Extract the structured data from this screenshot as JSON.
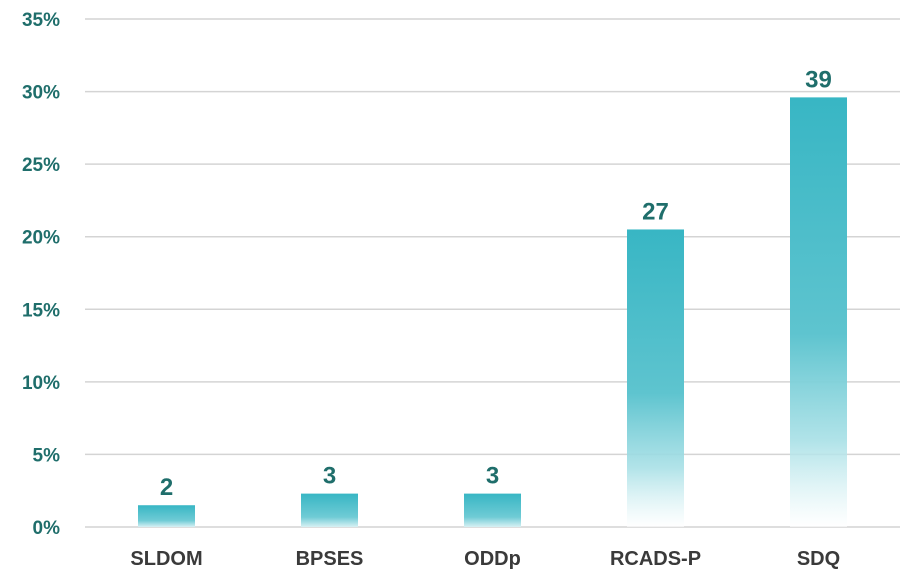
{
  "chart_data": {
    "type": "bar",
    "title": "",
    "xlabel": "",
    "ylabel": "",
    "categories": [
      "SLDOM",
      "BPSES",
      "ODDp",
      "RCADS-P",
      "SDQ"
    ],
    "values": [
      1.5,
      2.3,
      2.3,
      20.5,
      29.6
    ],
    "data_labels": [
      "2",
      "3",
      "3",
      "27",
      "39"
    ],
    "ylim": [
      0,
      35
    ],
    "yticks": [
      0,
      5,
      10,
      15,
      20,
      25,
      30,
      35
    ],
    "ytick_labels": [
      "0%",
      "5%",
      "10%",
      "15%",
      "20%",
      "25%",
      "30%",
      "35%"
    ],
    "grid": true,
    "legend": "none",
    "colors": {
      "bar_top": "#38b6c4",
      "bar_bottom": "#ffffff",
      "data_label": "#1f6e6b",
      "ytick_label": "#1f6e6b",
      "xtick_label": "#3a3a3a",
      "grid": "#d4d4d4"
    }
  }
}
